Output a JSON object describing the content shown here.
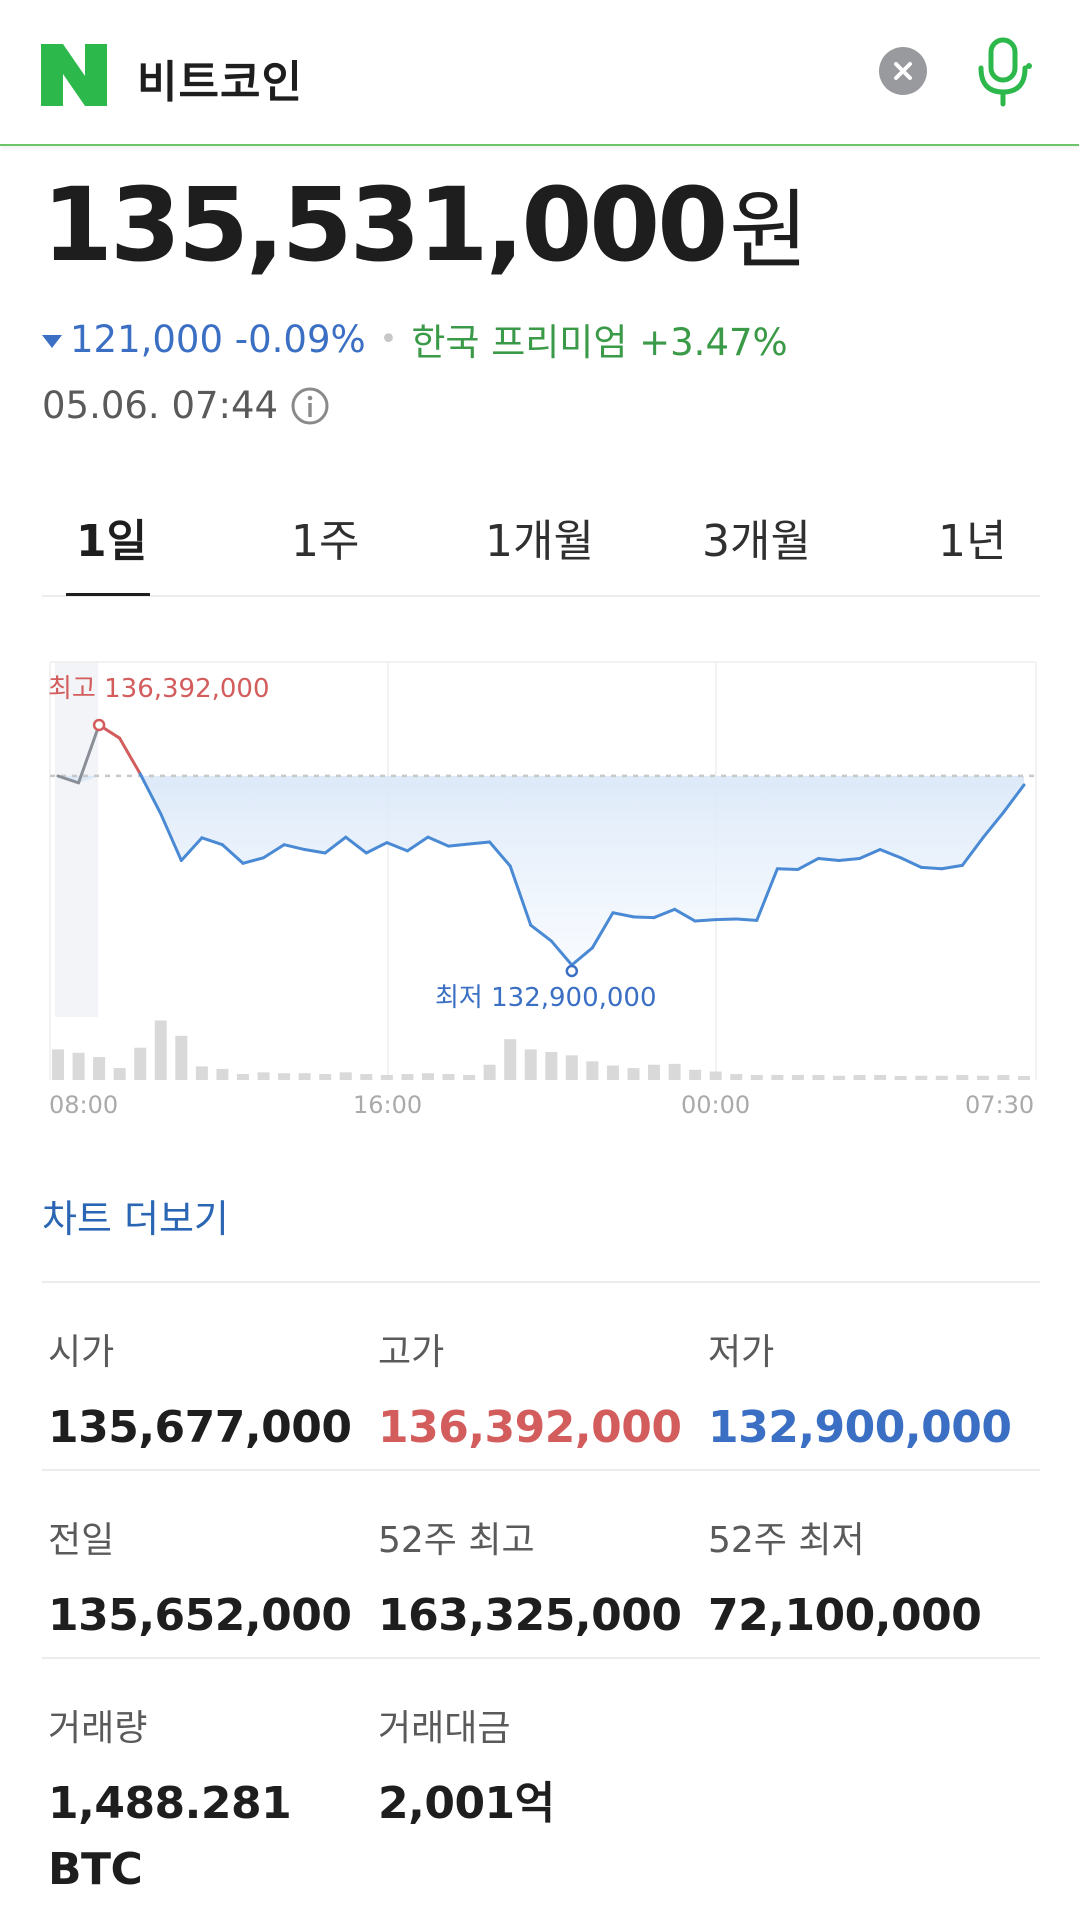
{
  "search": {
    "query": "비트코인",
    "clear_icon": "close-icon",
    "mic_icon": "microphone-icon"
  },
  "colors": {
    "brand": "#2db84b",
    "up": "#d35c5c",
    "down": "#3b6fc4",
    "premium": "#3a9a48",
    "link": "#2a66b3"
  },
  "price": {
    "value": "135,531,000",
    "unit": "원",
    "change": "121,000 -0.09%",
    "premium": "한국 프리미엄 +3.47%",
    "timestamp": "05.06. 07:44"
  },
  "tabs": [
    {
      "label": "1일",
      "active": true
    },
    {
      "label": "1주",
      "active": false
    },
    {
      "label": "1개월",
      "active": false
    },
    {
      "label": "3개월",
      "active": false
    },
    {
      "label": "1년",
      "active": false
    }
  ],
  "chart_data": {
    "type": "line",
    "x_ticks": [
      "08:00",
      "16:00",
      "00:00",
      "07:30"
    ],
    "high_label": "최고 136,392,000",
    "low_label": "최저 132,900,000",
    "high": 136392000,
    "low": 132900000,
    "prev_close": 135652000,
    "series": [
      {
        "values": [
          135650000,
          135550000,
          136392000,
          136200000,
          135680000,
          135100000,
          134420000,
          134750000,
          134650000,
          134380000,
          134460000,
          134650000,
          134580000,
          134530000,
          134760000,
          134530000,
          134680000,
          134560000,
          134760000,
          134630000,
          134660000,
          134690000,
          134340000,
          133480000,
          133250000,
          132900000,
          133150000,
          133660000,
          133600000,
          133590000,
          133710000,
          133540000,
          133560000,
          133570000,
          133550000,
          134300000,
          134290000,
          134450000,
          134420000,
          134450000,
          134580000,
          134460000,
          134320000,
          134300000,
          134350000,
          134750000,
          135120000,
          135520000
        ]
      }
    ],
    "volume": [
      0.36,
      0.32,
      0.27,
      0.14,
      0.38,
      0.7,
      0.52,
      0.16,
      0.13,
      0.07,
      0.09,
      0.08,
      0.08,
      0.07,
      0.09,
      0.07,
      0.06,
      0.07,
      0.08,
      0.07,
      0.06,
      0.18,
      0.48,
      0.36,
      0.33,
      0.29,
      0.22,
      0.17,
      0.14,
      0.18,
      0.19,
      0.12,
      0.1,
      0.07,
      0.06,
      0.06,
      0.06,
      0.06,
      0.05,
      0.06,
      0.06,
      0.04,
      0.05,
      0.05,
      0.06,
      0.05,
      0.06,
      0.04
    ],
    "grid": true
  },
  "more_chart_label": "차트 더보기",
  "stats": [
    [
      {
        "label": "시가",
        "value": "135,677,000",
        "tone": ""
      },
      {
        "label": "고가",
        "value": "136,392,000",
        "tone": "up"
      },
      {
        "label": "저가",
        "value": "132,900,000",
        "tone": "down"
      }
    ],
    [
      {
        "label": "전일",
        "value": "135,652,000",
        "tone": ""
      },
      {
        "label": "52주 최고",
        "value": "163,325,000",
        "tone": ""
      },
      {
        "label": "52주 최저",
        "value": "72,100,000",
        "tone": ""
      }
    ],
    [
      {
        "label": "거래량",
        "value": "1,488.281",
        "value2": "BTC",
        "tone": ""
      },
      {
        "label": "거래대금",
        "value": "2,001억",
        "tone": ""
      }
    ]
  ]
}
